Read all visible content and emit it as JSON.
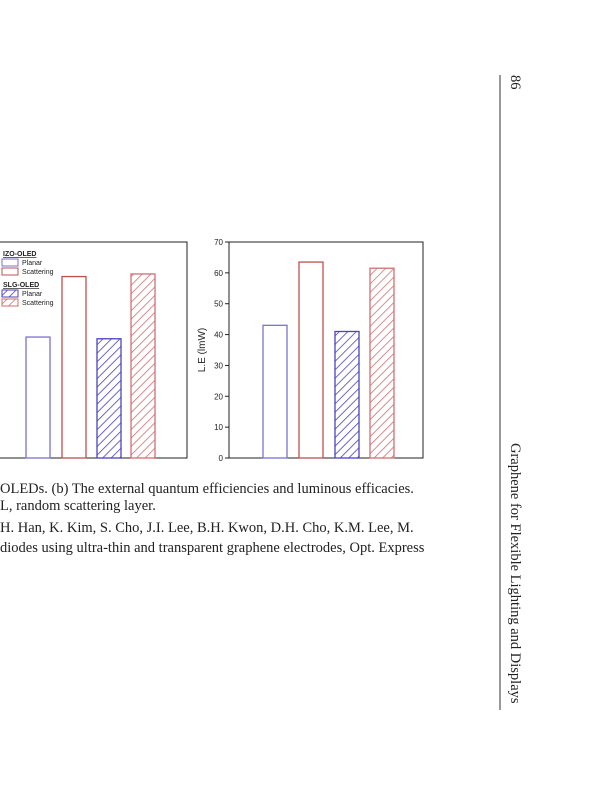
{
  "header": {
    "page_number": "86",
    "running_title": "Graphene for Flexible Lighting and Displays"
  },
  "chart_data": [
    {
      "type": "bar",
      "ylim": [
        0,
        25
      ],
      "values": [
        14,
        21,
        13.8,
        21.3
      ],
      "colors": [
        "#7a72d6",
        "#c0504d",
        "#4b43c0",
        "#d07070"
      ],
      "patterns": [
        "solid",
        "solid",
        "hatch",
        "hatch"
      ],
      "legend": [
        {
          "title": "IZO-OLED",
          "entries": [
            "Planar",
            "Scattering"
          ]
        },
        {
          "title": "SLG-OLED",
          "entries": [
            "Planar",
            "Scattering"
          ]
        }
      ]
    },
    {
      "type": "bar",
      "ylim": [
        0,
        70
      ],
      "yticks": [
        0,
        10,
        20,
        30,
        40,
        50,
        60,
        70
      ],
      "ylabel": "L.E (lmW)",
      "values": [
        43,
        63.5,
        41,
        61.5
      ],
      "colors": [
        "#7a72d6",
        "#c0504d",
        "#4b43c0",
        "#d07070"
      ],
      "patterns": [
        "solid",
        "solid",
        "hatch",
        "hatch"
      ]
    }
  ],
  "caption": {
    "lines": [
      "OLEDs. (b) The external quantum efficiencies and luminous efficacies.",
      "L, random scattering layer."
    ]
  },
  "reference": {
    "lines": [
      "H. Han, K. Kim, S. Cho, J.I. Lee, B.H. Kwon, D.H. Cho, K.M. Lee, M.",
      "diodes using ultra-thin and transparent graphene electrodes, Opt. Express"
    ]
  }
}
